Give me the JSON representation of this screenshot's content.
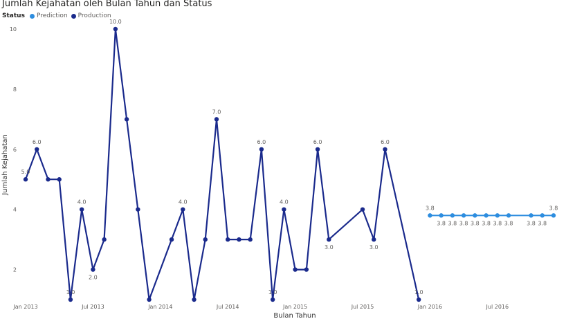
{
  "chart_data": {
    "type": "line",
    "title": "Jumlah Kejahatan oleh Bulan Tahun dan Status",
    "xlabel": "Bulan Tahun",
    "ylabel": "Jumlah Kejahatan",
    "legend": {
      "title": "Status",
      "placement": "top-left"
    },
    "xlim": [
      "2013-01",
      "2016-12"
    ],
    "ylim": [
      1,
      10
    ],
    "yticks": [
      "2",
      "4",
      "6",
      "8",
      "10"
    ],
    "xticks": [
      "Jan 2013",
      "Jul 2013",
      "Jan 2014",
      "Jul 2014",
      "Jan 2015",
      "Jul 2015",
      "Jan 2016",
      "Jul 2016"
    ],
    "grid": false,
    "series": [
      {
        "name": "Production",
        "color": "#1a2a8c",
        "points": [
          {
            "x": "2013-01",
            "y": 5,
            "label": "5.0"
          },
          {
            "x": "2013-02",
            "y": 6,
            "label": "6.0"
          },
          {
            "x": "2013-03",
            "y": 5,
            "label": ""
          },
          {
            "x": "2013-04",
            "y": 5,
            "label": ""
          },
          {
            "x": "2013-05",
            "y": 1,
            "label": "1.0"
          },
          {
            "x": "2013-06",
            "y": 4,
            "label": "4.0"
          },
          {
            "x": "2013-07",
            "y": 2,
            "label": "2.0"
          },
          {
            "x": "2013-08",
            "y": 3,
            "label": ""
          },
          {
            "x": "2013-09",
            "y": 10,
            "label": "10.0"
          },
          {
            "x": "2013-10",
            "y": 7,
            "label": ""
          },
          {
            "x": "2013-11",
            "y": 4,
            "label": ""
          },
          {
            "x": "2013-12",
            "y": 1,
            "label": ""
          },
          {
            "x": "2014-02",
            "y": 3,
            "label": ""
          },
          {
            "x": "2014-03",
            "y": 4,
            "label": "4.0"
          },
          {
            "x": "2014-04",
            "y": 1,
            "label": ""
          },
          {
            "x": "2014-05",
            "y": 3,
            "label": ""
          },
          {
            "x": "2014-06",
            "y": 7,
            "label": "7.0"
          },
          {
            "x": "2014-07",
            "y": 3,
            "label": ""
          },
          {
            "x": "2014-08",
            "y": 3,
            "label": ""
          },
          {
            "x": "2014-09",
            "y": 3,
            "label": ""
          },
          {
            "x": "2014-10",
            "y": 6,
            "label": "6.0"
          },
          {
            "x": "2014-11",
            "y": 1,
            "label": "1.0"
          },
          {
            "x": "2014-12",
            "y": 4,
            "label": "4.0"
          },
          {
            "x": "2015-01",
            "y": 2,
            "label": ""
          },
          {
            "x": "2015-02",
            "y": 2,
            "label": ""
          },
          {
            "x": "2015-03",
            "y": 6,
            "label": "6.0"
          },
          {
            "x": "2015-04",
            "y": 3,
            "label": "3.0"
          },
          {
            "x": "2015-07",
            "y": 4,
            "label": ""
          },
          {
            "x": "2015-08",
            "y": 3,
            "label": "3.0"
          },
          {
            "x": "2015-09",
            "y": 6,
            "label": "6.0"
          },
          {
            "x": "2015-12",
            "y": 1,
            "label": "1.0"
          }
        ]
      },
      {
        "name": "Prediction",
        "color": "#2d8ddf",
        "points": [
          {
            "x": "2016-01",
            "y": 3.8,
            "label": "3.8"
          },
          {
            "x": "2016-02",
            "y": 3.8,
            "label": "3.8"
          },
          {
            "x": "2016-03",
            "y": 3.8,
            "label": "3.8"
          },
          {
            "x": "2016-04",
            "y": 3.8,
            "label": "3.8"
          },
          {
            "x": "2016-05",
            "y": 3.8,
            "label": "3.8"
          },
          {
            "x": "2016-06",
            "y": 3.8,
            "label": "3.8"
          },
          {
            "x": "2016-07",
            "y": 3.8,
            "label": "3.8"
          },
          {
            "x": "2016-08",
            "y": 3.8,
            "label": "3.8"
          },
          {
            "x": "2016-10",
            "y": 3.8,
            "label": "3.8"
          },
          {
            "x": "2016-11",
            "y": 3.8,
            "label": "3.8"
          },
          {
            "x": "2016-12",
            "y": 3.8,
            "label": "3.8"
          }
        ]
      }
    ]
  }
}
